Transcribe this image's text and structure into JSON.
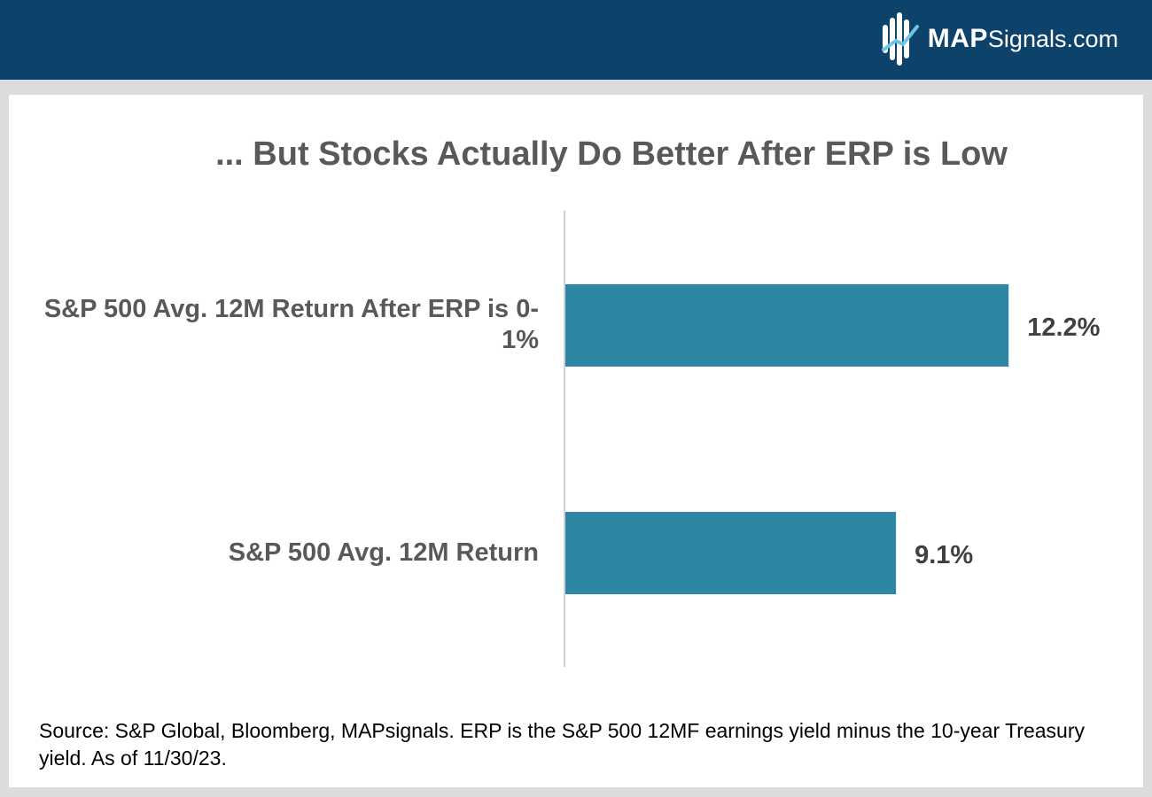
{
  "header": {
    "brand_bold": "MAP",
    "brand_rest": "Signals.com",
    "logo_icon": "mapsignals-logo-icon",
    "background_color": "#0d426b"
  },
  "chart_data": {
    "type": "bar",
    "orientation": "horizontal",
    "title": "... But Stocks Actually Do Better After ERP is Low",
    "categories": [
      "S&P 500 Avg. 12M Return After ERP is 0-1%",
      "S&P 500 Avg. 12M Return"
    ],
    "values": [
      12.2,
      9.1
    ],
    "data_labels": [
      "12.2%",
      "9.1%"
    ],
    "unit": "%",
    "xlim": [
      0,
      14
    ],
    "grid": false,
    "legend": false,
    "bar_color": "#2e86a5"
  },
  "footer": {
    "source": "Source: S&P Global, Bloomberg, MAPsignals. ERP is the S&P 500 12MF earnings yield minus the 10-year Treasury yield. As of 11/30/23."
  }
}
